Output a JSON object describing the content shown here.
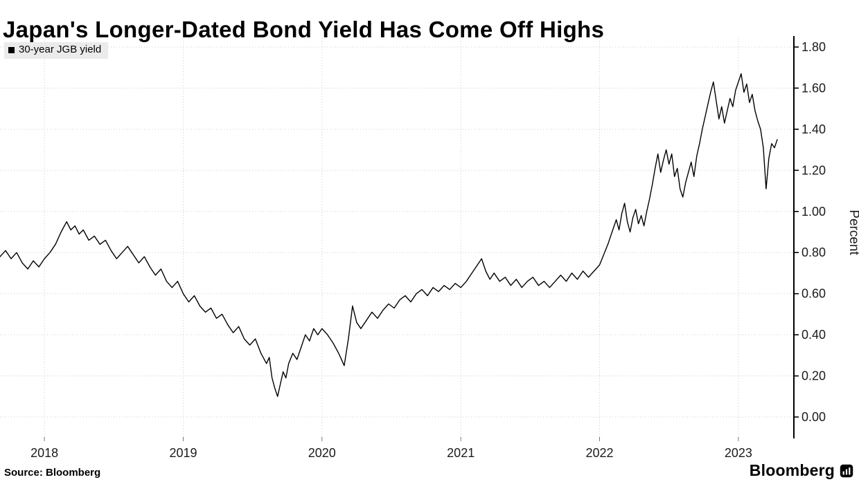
{
  "header": {
    "title": "Japan's Longer-Dated Bond Yield Has Come Off Highs"
  },
  "legend": {
    "label": "30-year JGB yield"
  },
  "footer": {
    "source": "Source: Bloomberg",
    "brand": "Bloomberg"
  },
  "colors": {
    "line": "#000000",
    "grid": "#c9c9c9",
    "axis": "#000000",
    "text": "#1a1a1a",
    "legend_bg": "#ebebeb",
    "background": "#ffffff"
  },
  "chart_data": {
    "type": "line",
    "title": "Japan's Longer-Dated Bond Yield Has Come Off Highs",
    "xlabel": "",
    "ylabel": "Percent",
    "legend": [
      "30-year JGB yield"
    ],
    "legend_position": "top-left",
    "grid": true,
    "xlim": [
      2017.68,
      2023.4
    ],
    "ylim": [
      0.0,
      1.8
    ],
    "yticks": [
      0.0,
      0.2,
      0.4,
      0.6,
      0.8,
      1.0,
      1.2,
      1.4,
      1.6,
      1.8
    ],
    "xticks": [
      2018,
      2019,
      2020,
      2021,
      2022,
      2023
    ],
    "series": [
      {
        "name": "30-year JGB yield",
        "color": "#000000",
        "x": [
          2017.68,
          2017.72,
          2017.76,
          2017.8,
          2017.84,
          2017.88,
          2017.92,
          2017.96,
          2018.0,
          2018.04,
          2018.08,
          2018.12,
          2018.16,
          2018.19,
          2018.22,
          2018.25,
          2018.28,
          2018.32,
          2018.36,
          2018.4,
          2018.44,
          2018.48,
          2018.52,
          2018.56,
          2018.6,
          2018.64,
          2018.68,
          2018.72,
          2018.76,
          2018.8,
          2018.84,
          2018.88,
          2018.92,
          2018.96,
          2019.0,
          2019.04,
          2019.08,
          2019.12,
          2019.16,
          2019.2,
          2019.24,
          2019.28,
          2019.32,
          2019.36,
          2019.4,
          2019.44,
          2019.48,
          2019.52,
          2019.56,
          2019.6,
          2019.62,
          2019.64,
          2019.66,
          2019.68,
          2019.7,
          2019.72,
          2019.74,
          2019.76,
          2019.79,
          2019.82,
          2019.85,
          2019.88,
          2019.91,
          2019.94,
          2019.97,
          2020.0,
          2020.04,
          2020.08,
          2020.12,
          2020.16,
          2020.19,
          2020.22,
          2020.25,
          2020.28,
          2020.32,
          2020.36,
          2020.4,
          2020.44,
          2020.48,
          2020.52,
          2020.56,
          2020.6,
          2020.64,
          2020.68,
          2020.72,
          2020.76,
          2020.8,
          2020.84,
          2020.88,
          2020.92,
          2020.96,
          2021.0,
          2021.04,
          2021.08,
          2021.12,
          2021.15,
          2021.18,
          2021.21,
          2021.24,
          2021.28,
          2021.32,
          2021.36,
          2021.4,
          2021.44,
          2021.48,
          2021.52,
          2021.56,
          2021.6,
          2021.64,
          2021.68,
          2021.72,
          2021.76,
          2021.8,
          2021.84,
          2021.88,
          2021.92,
          2021.96,
          2022.0,
          2022.03,
          2022.06,
          2022.09,
          2022.12,
          2022.14,
          2022.16,
          2022.18,
          2022.2,
          2022.22,
          2022.24,
          2022.26,
          2022.28,
          2022.3,
          2022.32,
          2022.34,
          2022.36,
          2022.38,
          2022.4,
          2022.42,
          2022.44,
          2022.46,
          2022.48,
          2022.5,
          2022.52,
          2022.54,
          2022.56,
          2022.58,
          2022.6,
          2022.62,
          2022.64,
          2022.66,
          2022.68,
          2022.7,
          2022.72,
          2022.74,
          2022.76,
          2022.78,
          2022.8,
          2022.82,
          2022.84,
          2022.86,
          2022.88,
          2022.9,
          2022.92,
          2022.94,
          2022.96,
          2022.98,
          2023.0,
          2023.02,
          2023.04,
          2023.06,
          2023.08,
          2023.1,
          2023.12,
          2023.14,
          2023.16,
          2023.18,
          2023.2,
          2023.22,
          2023.24,
          2023.26,
          2023.28
        ],
        "y": [
          0.78,
          0.81,
          0.77,
          0.8,
          0.75,
          0.72,
          0.76,
          0.73,
          0.77,
          0.8,
          0.84,
          0.9,
          0.95,
          0.91,
          0.93,
          0.89,
          0.91,
          0.86,
          0.88,
          0.84,
          0.86,
          0.81,
          0.77,
          0.8,
          0.83,
          0.79,
          0.75,
          0.78,
          0.73,
          0.69,
          0.72,
          0.66,
          0.63,
          0.66,
          0.6,
          0.56,
          0.59,
          0.54,
          0.51,
          0.53,
          0.48,
          0.5,
          0.45,
          0.41,
          0.44,
          0.38,
          0.35,
          0.38,
          0.31,
          0.26,
          0.29,
          0.19,
          0.14,
          0.1,
          0.16,
          0.22,
          0.19,
          0.26,
          0.31,
          0.28,
          0.34,
          0.4,
          0.37,
          0.43,
          0.4,
          0.43,
          0.4,
          0.36,
          0.31,
          0.25,
          0.38,
          0.54,
          0.46,
          0.43,
          0.47,
          0.51,
          0.48,
          0.52,
          0.55,
          0.53,
          0.57,
          0.59,
          0.56,
          0.6,
          0.62,
          0.59,
          0.63,
          0.61,
          0.64,
          0.62,
          0.65,
          0.63,
          0.66,
          0.7,
          0.74,
          0.77,
          0.71,
          0.67,
          0.7,
          0.66,
          0.68,
          0.64,
          0.67,
          0.63,
          0.66,
          0.68,
          0.64,
          0.66,
          0.63,
          0.66,
          0.69,
          0.66,
          0.7,
          0.67,
          0.71,
          0.68,
          0.71,
          0.74,
          0.79,
          0.84,
          0.9,
          0.96,
          0.91,
          0.99,
          1.04,
          0.95,
          0.9,
          0.97,
          1.01,
          0.94,
          0.98,
          0.93,
          1.0,
          1.06,
          1.13,
          1.21,
          1.28,
          1.19,
          1.25,
          1.3,
          1.23,
          1.28,
          1.17,
          1.21,
          1.11,
          1.07,
          1.14,
          1.19,
          1.24,
          1.17,
          1.27,
          1.33,
          1.4,
          1.46,
          1.52,
          1.58,
          1.63,
          1.54,
          1.45,
          1.51,
          1.43,
          1.49,
          1.55,
          1.51,
          1.59,
          1.63,
          1.67,
          1.58,
          1.62,
          1.53,
          1.57,
          1.49,
          1.44,
          1.4,
          1.31,
          1.11,
          1.26,
          1.33,
          1.31,
          1.35
        ]
      }
    ]
  }
}
